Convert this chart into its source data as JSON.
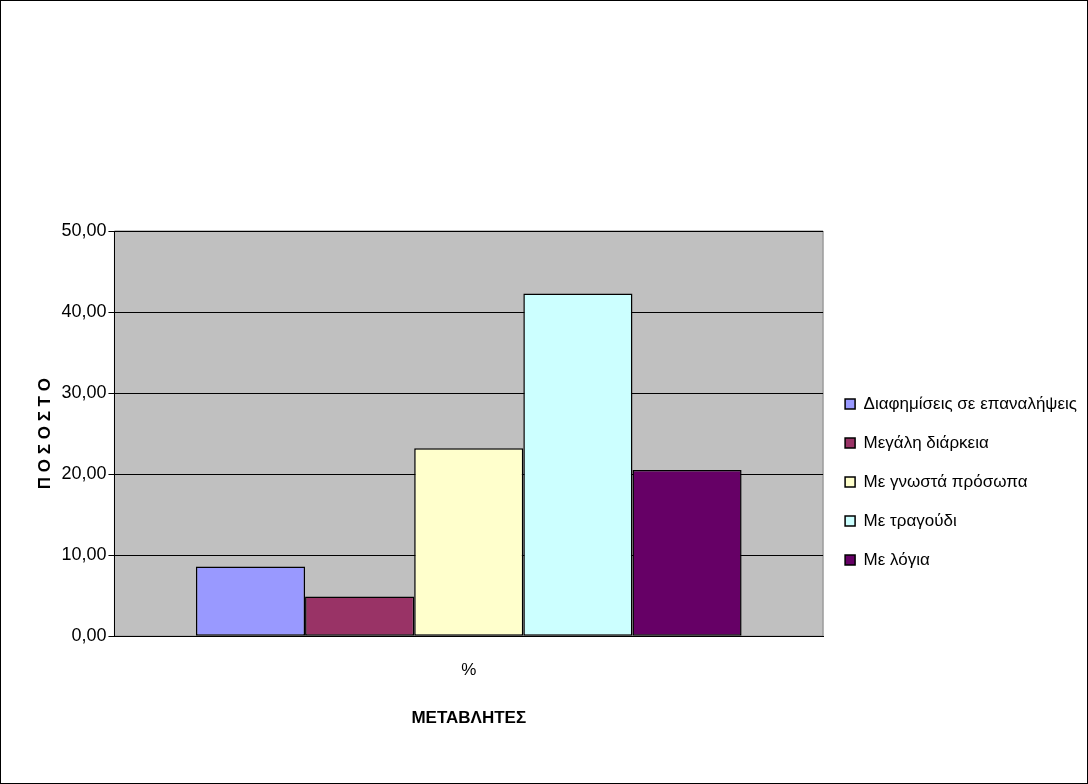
{
  "chart_data": {
    "type": "bar",
    "xlabel": "ΜΕΤΑΒΛΗΤΕΣ",
    "ylabel": "Π Ο Σ Ο Σ Τ Ο",
    "categories": [
      "%"
    ],
    "series": [
      {
        "name": "Διαφημίσεις σε επαναλήψεις",
        "color": "#9999ff",
        "values": [
          8.6
        ]
      },
      {
        "name": "Μεγάλη διάρκεια",
        "color": "#993366",
        "values": [
          4.9
        ]
      },
      {
        "name": "Με γνωστά πρόσωπα",
        "color": "#ffffcc",
        "values": [
          23.2
        ]
      },
      {
        "name": "Με τραγούδι",
        "color": "#ccffff",
        "values": [
          42.3
        ]
      },
      {
        "name": "Με λόγια",
        "color": "#660066",
        "values": [
          20.5
        ]
      }
    ],
    "ylim": [
      0,
      50
    ],
    "yticks": [
      {
        "value": 0,
        "label": "0,00"
      },
      {
        "value": 10,
        "label": "10,00"
      },
      {
        "value": 20,
        "label": "20,00"
      },
      {
        "value": 30,
        "label": "30,00"
      },
      {
        "value": 40,
        "label": "40,00"
      },
      {
        "value": 50,
        "label": "50,00"
      }
    ],
    "grid": "y",
    "legend": "right"
  }
}
